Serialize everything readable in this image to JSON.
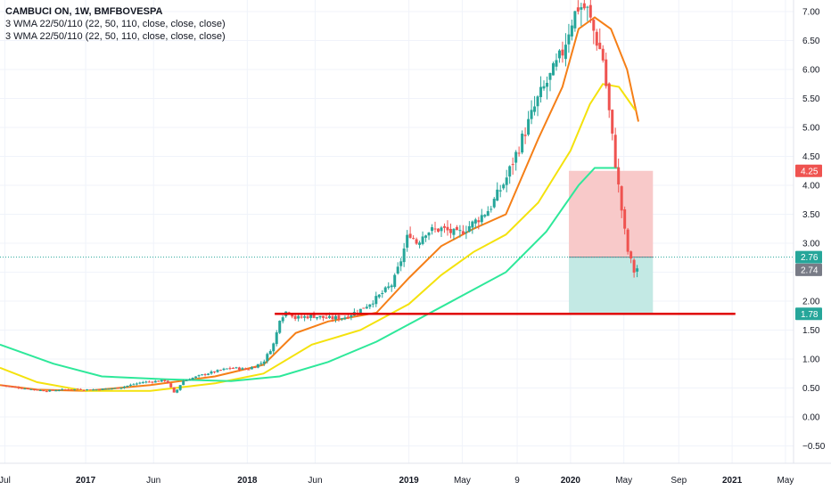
{
  "legend": {
    "title": "CAMBUCI ON, 1W, BMFBOVESPA",
    "line1": "3 WMA 22/50/110 (22, 50, 110, close, close, close)",
    "line2": "3 WMA 22/50/110 (22, 50, 110, close, close, close)"
  },
  "colors": {
    "up": "#26a69a",
    "down": "#ef5350",
    "wma22": "#f57f17",
    "wma50": "#f4e20d",
    "wma110": "#2ee89a",
    "support": "#e00000",
    "stop_zone": "#f8c9c9",
    "target_zone": "#c3e9e4"
  },
  "chart_data": {
    "type": "candlestick",
    "title": "CAMBUCI ON, 1W, BMFBOVESPA",
    "ylim": [
      -0.8,
      7.2
    ],
    "y_ticks": [
      "7.00",
      "6.50",
      "6.00",
      "5.50",
      "5.00",
      "4.50",
      "4.00",
      "3.50",
      "3.00",
      "2.50",
      "2.00",
      "1.50",
      "1.00",
      "0.50",
      "0.00",
      "−0.50"
    ],
    "y_tick_values": [
      7.0,
      6.5,
      6.0,
      5.5,
      5.0,
      4.5,
      4.0,
      3.5,
      3.0,
      2.5,
      2.0,
      1.5,
      1.0,
      0.5,
      0.0,
      -0.5
    ],
    "x_ticks": [
      {
        "label": "Jul",
        "year": 2016.5,
        "major": false
      },
      {
        "label": "2017",
        "year": 2017.0,
        "major": true
      },
      {
        "label": "Jun",
        "year": 2017.42,
        "major": false
      },
      {
        "label": "2018",
        "year": 2018.0,
        "major": true
      },
      {
        "label": "Jun",
        "year": 2018.42,
        "major": false
      },
      {
        "label": "2019",
        "year": 2019.0,
        "major": true
      },
      {
        "label": "May",
        "year": 2019.33,
        "major": false
      },
      {
        "label": "9",
        "year": 2019.67,
        "major": false
      },
      {
        "label": "2020",
        "year": 2020.0,
        "major": true
      },
      {
        "label": "May",
        "year": 2020.33,
        "major": false
      },
      {
        "label": "Sep",
        "year": 2020.67,
        "major": false
      },
      {
        "label": "2021",
        "year": 2021.0,
        "major": true
      },
      {
        "label": "May",
        "year": 2021.33,
        "major": false
      }
    ],
    "xlim": [
      2016.47,
      2021.38
    ],
    "support_level": 1.78,
    "support_range": [
      2018.17,
      2021.02
    ],
    "position": {
      "entry": 2.76,
      "stop": 4.25,
      "target": 1.78,
      "from": 2019.99,
      "to": 2020.51
    },
    "price_labels": [
      {
        "text": "4.25",
        "value": 4.25,
        "color": "#ef5350"
      },
      {
        "text": "2.76",
        "value": 2.76,
        "color": "#26a69a"
      },
      {
        "text": "2.74",
        "value": 2.74,
        "color": "#787b86"
      },
      {
        "text": "1.78",
        "value": 1.78,
        "color": "#26a69a"
      }
    ],
    "close_path": [
      [
        2016.47,
        0.55
      ],
      [
        2016.6,
        0.5
      ],
      [
        2016.75,
        0.45
      ],
      [
        2016.9,
        0.48
      ],
      [
        2017.05,
        0.47
      ],
      [
        2017.2,
        0.5
      ],
      [
        2017.35,
        0.6
      ],
      [
        2017.5,
        0.63
      ],
      [
        2017.55,
        0.4
      ],
      [
        2017.6,
        0.62
      ],
      [
        2017.75,
        0.75
      ],
      [
        2017.9,
        0.85
      ],
      [
        2018.0,
        0.82
      ],
      [
        2018.1,
        0.95
      ],
      [
        2018.17,
        1.3
      ],
      [
        2018.2,
        1.7
      ],
      [
        2018.25,
        1.85
      ],
      [
        2018.3,
        1.7
      ],
      [
        2018.4,
        1.75
      ],
      [
        2018.5,
        1.7
      ],
      [
        2018.6,
        1.72
      ],
      [
        2018.7,
        1.85
      ],
      [
        2018.8,
        2.05
      ],
      [
        2018.9,
        2.3
      ],
      [
        2018.95,
        2.7
      ],
      [
        2019.0,
        3.2
      ],
      [
        2019.05,
        3.0
      ],
      [
        2019.1,
        3.2
      ],
      [
        2019.2,
        3.25
      ],
      [
        2019.3,
        3.15
      ],
      [
        2019.4,
        3.35
      ],
      [
        2019.5,
        3.6
      ],
      [
        2019.6,
        4.1
      ],
      [
        2019.7,
        4.8
      ],
      [
        2019.8,
        5.5
      ],
      [
        2019.9,
        6.0
      ],
      [
        2019.95,
        6.3
      ],
      [
        2020.0,
        6.8
      ],
      [
        2020.05,
        7.1
      ],
      [
        2020.1,
        7.05
      ],
      [
        2020.15,
        6.6
      ],
      [
        2020.2,
        6.2
      ],
      [
        2020.25,
        5.0
      ],
      [
        2020.3,
        3.9
      ],
      [
        2020.35,
        2.9
      ],
      [
        2020.4,
        2.45
      ],
      [
        2020.43,
        2.74
      ]
    ],
    "series": [
      {
        "name": "WMA 22",
        "color": "#f57f17",
        "points": [
          [
            2016.47,
            0.55
          ],
          [
            2016.7,
            0.47
          ],
          [
            2017.0,
            0.45
          ],
          [
            2017.4,
            0.55
          ],
          [
            2017.8,
            0.7
          ],
          [
            2018.1,
            0.9
          ],
          [
            2018.3,
            1.45
          ],
          [
            2018.5,
            1.65
          ],
          [
            2018.8,
            1.8
          ],
          [
            2019.0,
            2.4
          ],
          [
            2019.2,
            2.95
          ],
          [
            2019.4,
            3.25
          ],
          [
            2019.6,
            3.5
          ],
          [
            2019.8,
            4.8
          ],
          [
            2019.95,
            5.7
          ],
          [
            2020.05,
            6.7
          ],
          [
            2020.15,
            6.9
          ],
          [
            2020.25,
            6.7
          ],
          [
            2020.35,
            6.0
          ],
          [
            2020.42,
            5.1
          ]
        ]
      },
      {
        "name": "WMA 50",
        "color": "#f4e20d",
        "points": [
          [
            2016.47,
            0.85
          ],
          [
            2016.7,
            0.6
          ],
          [
            2017.0,
            0.45
          ],
          [
            2017.4,
            0.45
          ],
          [
            2017.8,
            0.58
          ],
          [
            2018.1,
            0.75
          ],
          [
            2018.4,
            1.25
          ],
          [
            2018.7,
            1.5
          ],
          [
            2019.0,
            1.95
          ],
          [
            2019.2,
            2.45
          ],
          [
            2019.4,
            2.85
          ],
          [
            2019.6,
            3.15
          ],
          [
            2019.8,
            3.7
          ],
          [
            2020.0,
            4.6
          ],
          [
            2020.12,
            5.4
          ],
          [
            2020.2,
            5.75
          ],
          [
            2020.3,
            5.7
          ],
          [
            2020.4,
            5.3
          ]
        ]
      },
      {
        "name": "WMA 110",
        "color": "#2ee89a",
        "points": [
          [
            2016.47,
            1.25
          ],
          [
            2016.8,
            0.92
          ],
          [
            2017.1,
            0.7
          ],
          [
            2017.5,
            0.65
          ],
          [
            2017.9,
            0.62
          ],
          [
            2018.2,
            0.7
          ],
          [
            2018.5,
            0.95
          ],
          [
            2018.8,
            1.3
          ],
          [
            2019.0,
            1.6
          ],
          [
            2019.3,
            2.05
          ],
          [
            2019.6,
            2.5
          ],
          [
            2019.85,
            3.2
          ],
          [
            2020.05,
            4.0
          ],
          [
            2020.15,
            4.3
          ],
          [
            2020.3,
            4.3
          ]
        ]
      }
    ]
  }
}
